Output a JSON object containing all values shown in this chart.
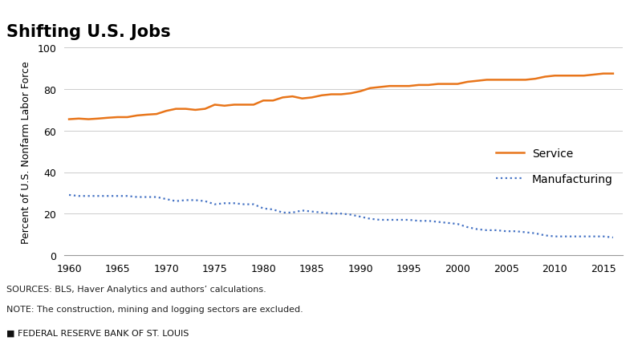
{
  "title": "Shifting U.S. Jobs",
  "ylabel": "Percent of U.S. Nonfarm Labor Force",
  "ylim": [
    0,
    100
  ],
  "yticks": [
    0,
    20,
    40,
    60,
    80,
    100
  ],
  "xlim": [
    1959.5,
    2017
  ],
  "xticks": [
    1960,
    1965,
    1970,
    1975,
    1980,
    1985,
    1990,
    1995,
    2000,
    2005,
    2010,
    2015
  ],
  "service_color": "#E8751A",
  "manufacturing_color": "#4472C4",
  "service_data": {
    "years": [
      1960,
      1961,
      1962,
      1963,
      1964,
      1965,
      1966,
      1967,
      1968,
      1969,
      1970,
      1971,
      1972,
      1973,
      1974,
      1975,
      1976,
      1977,
      1978,
      1979,
      1980,
      1981,
      1982,
      1983,
      1984,
      1985,
      1986,
      1987,
      1988,
      1989,
      1990,
      1991,
      1992,
      1993,
      1994,
      1995,
      1996,
      1997,
      1998,
      1999,
      2000,
      2001,
      2002,
      2003,
      2004,
      2005,
      2006,
      2007,
      2008,
      2009,
      2010,
      2011,
      2012,
      2013,
      2014,
      2015,
      2016
    ],
    "values": [
      65.5,
      65.8,
      65.5,
      65.8,
      66.2,
      66.5,
      66.5,
      67.3,
      67.7,
      68.0,
      69.5,
      70.5,
      70.5,
      70.0,
      70.5,
      72.5,
      72.0,
      72.5,
      72.5,
      72.5,
      74.5,
      74.5,
      76.0,
      76.5,
      75.5,
      76.0,
      77.0,
      77.5,
      77.5,
      78.0,
      79.0,
      80.5,
      81.0,
      81.5,
      81.5,
      81.5,
      82.0,
      82.0,
      82.5,
      82.5,
      82.5,
      83.5,
      84.0,
      84.5,
      84.5,
      84.5,
      84.5,
      84.5,
      85.0,
      86.0,
      86.5,
      86.5,
      86.5,
      86.5,
      87.0,
      87.5,
      87.5
    ]
  },
  "manufacturing_data": {
    "years": [
      1960,
      1961,
      1962,
      1963,
      1964,
      1965,
      1966,
      1967,
      1968,
      1969,
      1970,
      1971,
      1972,
      1973,
      1974,
      1975,
      1976,
      1977,
      1978,
      1979,
      1980,
      1981,
      1982,
      1983,
      1984,
      1985,
      1986,
      1987,
      1988,
      1989,
      1990,
      1991,
      1992,
      1993,
      1994,
      1995,
      1996,
      1997,
      1998,
      1999,
      2000,
      2001,
      2002,
      2003,
      2004,
      2005,
      2006,
      2007,
      2008,
      2009,
      2010,
      2011,
      2012,
      2013,
      2014,
      2015,
      2016
    ],
    "values": [
      29.0,
      28.5,
      28.5,
      28.5,
      28.5,
      28.5,
      28.5,
      28.0,
      28.0,
      28.0,
      27.0,
      26.0,
      26.5,
      26.5,
      26.0,
      24.5,
      25.0,
      25.0,
      24.5,
      24.5,
      22.5,
      22.0,
      20.5,
      20.5,
      21.5,
      21.0,
      20.5,
      20.0,
      20.0,
      19.5,
      18.5,
      17.5,
      17.0,
      17.0,
      17.0,
      17.0,
      16.5,
      16.5,
      16.0,
      15.5,
      15.0,
      13.5,
      12.5,
      12.0,
      12.0,
      11.5,
      11.5,
      11.0,
      10.5,
      9.5,
      9.0,
      9.0,
      9.0,
      9.0,
      9.0,
      9.0,
      8.5
    ]
  },
  "sources_text": "SOURCES: BLS, Haver Analytics and authors’ calculations.",
  "note_text": "NOTE: The construction, mining and logging sectors are excluded.",
  "footer_text": "FEDERAL RESERVE BANK OF ST. LOUIS",
  "title_fontsize": 15,
  "axis_fontsize": 9,
  "tick_fontsize": 9,
  "annotation_fontsize": 10,
  "footer_fontsize": 8,
  "background_color": "#ffffff",
  "grid_color": "#cccccc"
}
